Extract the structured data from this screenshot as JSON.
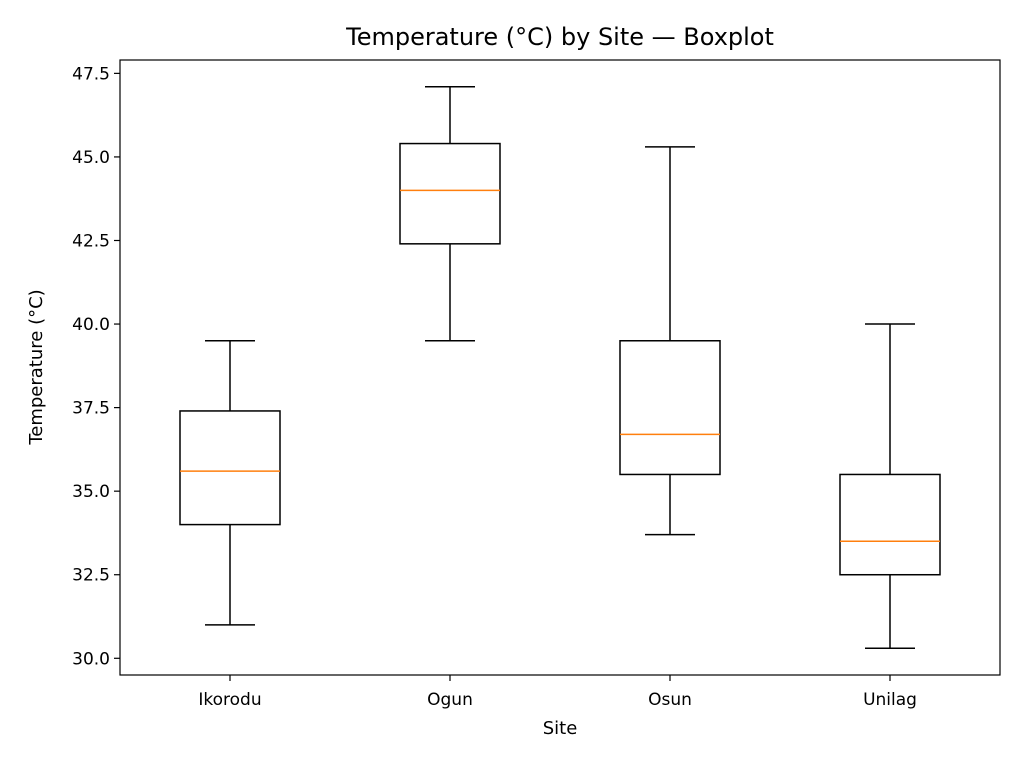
{
  "chart_data": {
    "type": "box",
    "title": "Temperature (°C) by Site — Boxplot",
    "xlabel": "Site",
    "ylabel": "Temperature (°C)",
    "ylim": [
      29.5,
      47.9
    ],
    "yticks": [
      "30.0",
      "32.5",
      "35.0",
      "37.5",
      "40.0",
      "42.5",
      "45.0",
      "47.5"
    ],
    "grid": false,
    "categories": [
      "Ikorodu",
      "Ogun",
      "Osun",
      "Unilag"
    ],
    "boxes": [
      {
        "category": "Ikorodu",
        "whisker_low": 31.0,
        "q1": 34.0,
        "median": 35.6,
        "q3": 37.4,
        "whisker_high": 39.5
      },
      {
        "category": "Ogun",
        "whisker_low": 39.5,
        "q1": 42.4,
        "median": 44.0,
        "q3": 45.4,
        "whisker_high": 47.1
      },
      {
        "category": "Osun",
        "whisker_low": 33.7,
        "q1": 35.5,
        "median": 36.7,
        "q3": 39.5,
        "whisker_high": 45.3
      },
      {
        "category": "Unilag",
        "whisker_low": 30.3,
        "q1": 32.5,
        "median": 33.5,
        "q3": 35.5,
        "whisker_high": 40.0
      }
    ],
    "colors": {
      "box": "#000000",
      "median": "#ff7f0e"
    }
  }
}
